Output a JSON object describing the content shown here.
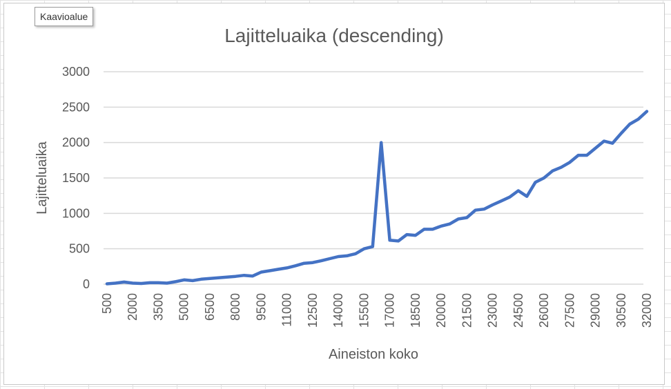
{
  "tooltip": {
    "label": "Kaavioalue"
  },
  "chart_data": {
    "type": "line",
    "title": "Lajitteluaika (descending)",
    "xlabel": "Aineiston koko",
    "ylabel": "Lajitteluaika",
    "ylim": [
      0,
      3000
    ],
    "yticks": [
      0,
      500,
      1000,
      1500,
      2000,
      2500,
      3000
    ],
    "grid": "horizontal",
    "legend": "none",
    "colors": {
      "line": "#4472c4",
      "grid": "#d9d9d9",
      "text": "#595959"
    },
    "x_tick_labels": [
      "500",
      "2000",
      "3500",
      "5000",
      "6500",
      "8000",
      "9500",
      "11000",
      "12500",
      "14000",
      "15500",
      "17000",
      "18500",
      "20000",
      "21500",
      "23000",
      "24500",
      "26000",
      "27500",
      "29000",
      "30500",
      "32000"
    ],
    "series": [
      {
        "x": [
          500,
          1000,
          1500,
          2000,
          2500,
          3000,
          3500,
          4000,
          4500,
          5000,
          5500,
          6000,
          6500,
          7000,
          7500,
          8000,
          8500,
          9000,
          9500,
          10000,
          10500,
          11000,
          11500,
          12000,
          12500,
          13000,
          13500,
          14000,
          14500,
          15000,
          15500,
          16000,
          16500,
          17000,
          17500,
          18000,
          18500,
          19000,
          19500,
          20000,
          20500,
          21000,
          21500,
          22000,
          22500,
          23000,
          23500,
          24000,
          24500,
          25000,
          25500,
          26000,
          26500,
          27000,
          27500,
          28000,
          28500,
          29000,
          29500,
          30000,
          30500,
          31000,
          31500,
          32000
        ],
        "values": [
          5,
          15,
          30,
          15,
          10,
          20,
          20,
          15,
          35,
          60,
          50,
          70,
          80,
          90,
          100,
          110,
          125,
          115,
          170,
          190,
          210,
          230,
          260,
          295,
          305,
          330,
          360,
          390,
          400,
          430,
          500,
          530,
          2000,
          620,
          610,
          700,
          690,
          775,
          775,
          820,
          850,
          920,
          940,
          1045,
          1060,
          1120,
          1175,
          1230,
          1320,
          1240,
          1440,
          1500,
          1600,
          1650,
          1720,
          1820,
          1820,
          1920,
          2020,
          1990,
          2130,
          2260,
          2330,
          2440
        ]
      }
    ]
  }
}
